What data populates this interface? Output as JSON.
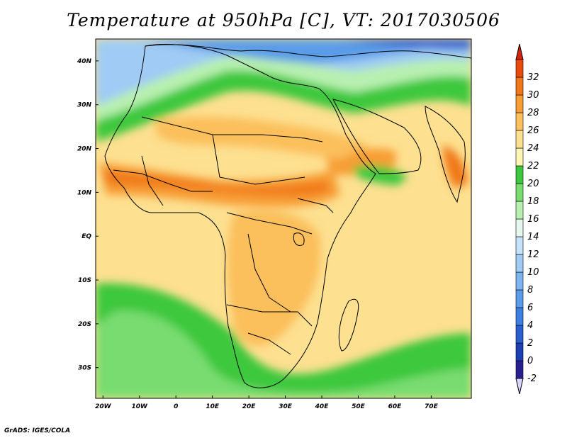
{
  "title": "Temperature at 950hPa [C], VT: 2017030506",
  "credit": "GrADS: IGES/COLA",
  "map": {
    "lon_range": [
      -22,
      81
    ],
    "lat_range": [
      -37,
      45
    ],
    "lon_ticks": [
      {
        "lon": -20,
        "label": "20W"
      },
      {
        "lon": -10,
        "label": "10W"
      },
      {
        "lon": 0,
        "label": "0"
      },
      {
        "lon": 10,
        "label": "10E"
      },
      {
        "lon": 20,
        "label": "20E"
      },
      {
        "lon": 30,
        "label": "30E"
      },
      {
        "lon": 40,
        "label": "40E"
      },
      {
        "lon": 50,
        "label": "50E"
      },
      {
        "lon": 60,
        "label": "60E"
      },
      {
        "lon": 70,
        "label": "70E"
      }
    ],
    "lat_ticks": [
      {
        "lat": 40,
        "label": "40N"
      },
      {
        "lat": 30,
        "label": "30N"
      },
      {
        "lat": 20,
        "label": "20N"
      },
      {
        "lat": 10,
        "label": "10N"
      },
      {
        "lat": 0,
        "label": "EQ"
      },
      {
        "lat": -10,
        "label": "10S"
      },
      {
        "lat": -20,
        "label": "20S"
      },
      {
        "lat": -30,
        "label": "30S"
      }
    ]
  },
  "colorbar": {
    "levels": [
      {
        "label": "-2",
        "color": "#2a1f8f"
      },
      {
        "label": "0",
        "color": "#1c3fb4"
      },
      {
        "label": "2",
        "color": "#2a5fd0"
      },
      {
        "label": "4",
        "color": "#3d7ee2"
      },
      {
        "label": "6",
        "color": "#5a9ce8"
      },
      {
        "label": "8",
        "color": "#7cb4ef"
      },
      {
        "label": "10",
        "color": "#9fcbf4"
      },
      {
        "label": "12",
        "color": "#c4e2f8"
      },
      {
        "label": "14",
        "color": "#e6f7f0"
      },
      {
        "label": "16",
        "color": "#b8f0b0"
      },
      {
        "label": "18",
        "color": "#78dc70"
      },
      {
        "label": "20",
        "color": "#3cc83c"
      },
      {
        "label": "22",
        "color": "#fff6b4"
      },
      {
        "label": "24",
        "color": "#fde090"
      },
      {
        "label": "26",
        "color": "#fbbf5c"
      },
      {
        "label": "28",
        "color": "#f79d34"
      },
      {
        "label": "30",
        "color": "#f07818"
      },
      {
        "label": "32",
        "color": "#e84a0c"
      }
    ],
    "under_color": "#d8d4ff",
    "over_color": "#d8200a"
  }
}
